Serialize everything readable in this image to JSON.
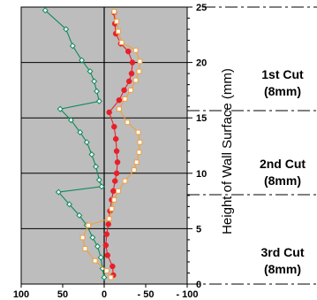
{
  "chart_data": {
    "type": "line",
    "title": "",
    "xlabel": "",
    "ylabel": "Height of Wall Surface (mm)",
    "xlim": [
      100,
      -100
    ],
    "ylim": [
      0,
      25
    ],
    "x_ticks": [
      "100",
      "50",
      "0",
      "- 50",
      "- 100"
    ],
    "y_ticks": [
      "0",
      "5",
      "10",
      "15",
      "20",
      "25"
    ],
    "grid": true,
    "colors": {
      "plot_bg": "#bdbdbd",
      "green": "#0f8a5a",
      "red": "#e8202a",
      "orange": "#f0a040"
    },
    "series": [
      {
        "color": "green",
        "marker": "diamond-open",
        "points": [
          [
            71,
            24.7
          ],
          [
            46,
            23
          ],
          [
            38,
            21.5
          ],
          [
            27,
            20.2
          ],
          [
            17,
            19.2
          ],
          [
            12,
            18.3
          ],
          [
            9,
            17.4
          ],
          [
            6,
            16.5
          ],
          [
            53,
            15.8
          ],
          [
            40,
            14.8
          ],
          [
            29,
            13.7
          ],
          [
            21,
            12.8
          ],
          [
            15,
            11.7
          ],
          [
            10,
            10.6
          ],
          [
            6,
            9.4
          ],
          [
            3,
            8.8
          ],
          [
            55,
            8.3
          ],
          [
            42,
            7.2
          ],
          [
            30,
            6.2
          ],
          [
            21,
            5.3
          ],
          [
            14,
            4.2
          ],
          [
            8,
            3.4
          ],
          [
            4,
            2.4
          ],
          [
            2,
            1.4
          ],
          [
            0,
            0.6
          ]
        ]
      },
      {
        "color": "red",
        "marker": "circle-filled",
        "points": [
          [
            -12,
            24.5
          ],
          [
            -13,
            23.5
          ],
          [
            -14,
            22.6
          ],
          [
            -20,
            21.7
          ],
          [
            -29,
            21
          ],
          [
            -34,
            20
          ],
          [
            -33,
            19
          ],
          [
            -30,
            18.3
          ],
          [
            -24,
            17.5
          ],
          [
            -18,
            16.6
          ],
          [
            -6,
            15.5
          ],
          [
            -12,
            14.2
          ],
          [
            -14,
            13.1
          ],
          [
            -15,
            12
          ],
          [
            -16,
            11
          ],
          [
            -15,
            10
          ],
          [
            -13,
            9.3
          ],
          [
            -11,
            8.4
          ],
          [
            -9,
            7.6
          ],
          [
            -7,
            6.6
          ],
          [
            -5,
            5.4
          ],
          [
            -3,
            4.5
          ],
          [
            -2,
            3.5
          ],
          [
            -4,
            2.6
          ],
          [
            -10,
            1.6
          ],
          [
            -11,
            0.8
          ]
        ]
      },
      {
        "color": "orange",
        "marker": "square-open",
        "points": [
          [
            -12,
            24.6
          ],
          [
            -15,
            23.7
          ],
          [
            -17,
            22.8
          ],
          [
            -21,
            21.8
          ],
          [
            -38,
            21.1
          ],
          [
            -43,
            20.1
          ],
          [
            -42,
            19.2
          ],
          [
            -38,
            18.4
          ],
          [
            -32,
            17.5
          ],
          [
            -25,
            16.7
          ],
          [
            -18,
            15.8
          ],
          [
            -28,
            14.6
          ],
          [
            -41,
            13.7
          ],
          [
            -43,
            12.8
          ],
          [
            -42,
            11.9
          ],
          [
            -39,
            11
          ],
          [
            -36,
            10.3
          ],
          [
            -25,
            9.3
          ],
          [
            -17,
            8.4
          ],
          [
            -12,
            7.6
          ],
          [
            -9,
            6.8
          ],
          [
            -6,
            5.9
          ],
          [
            19,
            5.3
          ],
          [
            26,
            4.2
          ],
          [
            23,
            3.2
          ],
          [
            11,
            2.1
          ],
          [
            -3,
            1.2
          ],
          [
            -8,
            0.6
          ]
        ]
      }
    ],
    "annotations": [
      {
        "label": "1st Cut",
        "sub": "(8mm)"
      },
      {
        "label": "2nd Cut",
        "sub": "(8mm)"
      },
      {
        "label": "3rd Cut",
        "sub": "(8mm)"
      }
    ]
  }
}
